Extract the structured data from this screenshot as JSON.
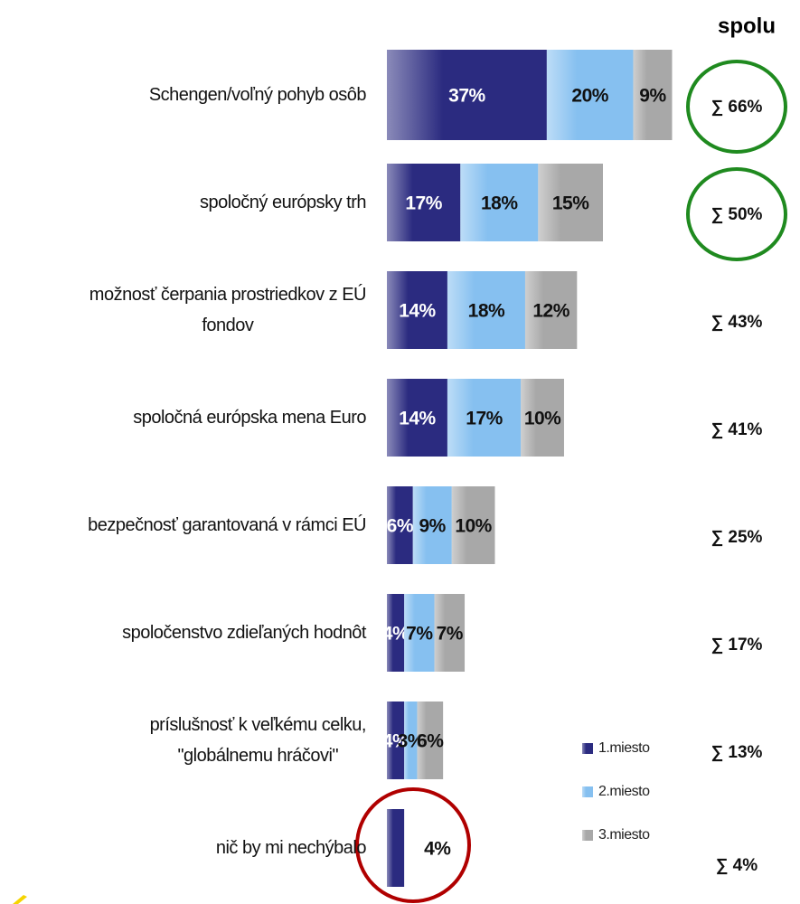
{
  "chart_data": {
    "type": "stacked-bar-horizontal",
    "total_header": "spolu",
    "categories": [
      "Schengen/voľný pohyb osôb",
      "spoločný európsky trh",
      "možnosť čerpania prostriedkov z EÚ\nfondov",
      "spoločná európska mena Euro",
      "bezpečnosť garantovaná v rámci EÚ",
      "spoločenstvo zdieľaných hodnôt",
      "príslušnosť k veľkému celku,\n\"globálnemu hráčovi\"",
      "nič by mi nechýbalo"
    ],
    "series": [
      {
        "name": "1.miesto",
        "color": "#2b2b80",
        "values": [
          37,
          17,
          14,
          14,
          6,
          4,
          4,
          4
        ],
        "value_labels": [
          "37%",
          "17%",
          "14%",
          "14%",
          "6%",
          "4%",
          "4%",
          "4%"
        ]
      },
      {
        "name": "2.miesto",
        "color": "#86c0f0",
        "values": [
          20,
          18,
          18,
          17,
          9,
          7,
          3,
          null
        ],
        "value_labels": [
          "20%",
          "18%",
          "18%",
          "17%",
          "9%",
          "7%",
          "3%",
          null
        ]
      },
      {
        "name": "3.miesto",
        "color": "#a8a8a8",
        "values": [
          9,
          15,
          12,
          10,
          10,
          7,
          6,
          null
        ],
        "value_labels": [
          "9%",
          "15%",
          "12%",
          "10%",
          "10%",
          "7%",
          "6%",
          null
        ]
      }
    ],
    "totals": [
      "∑ 66%",
      "∑ 50%",
      "∑ 43%",
      "∑ 41%",
      "∑ 25%",
      "∑ 17%",
      "∑ 13%",
      "∑ 4%"
    ]
  }
}
